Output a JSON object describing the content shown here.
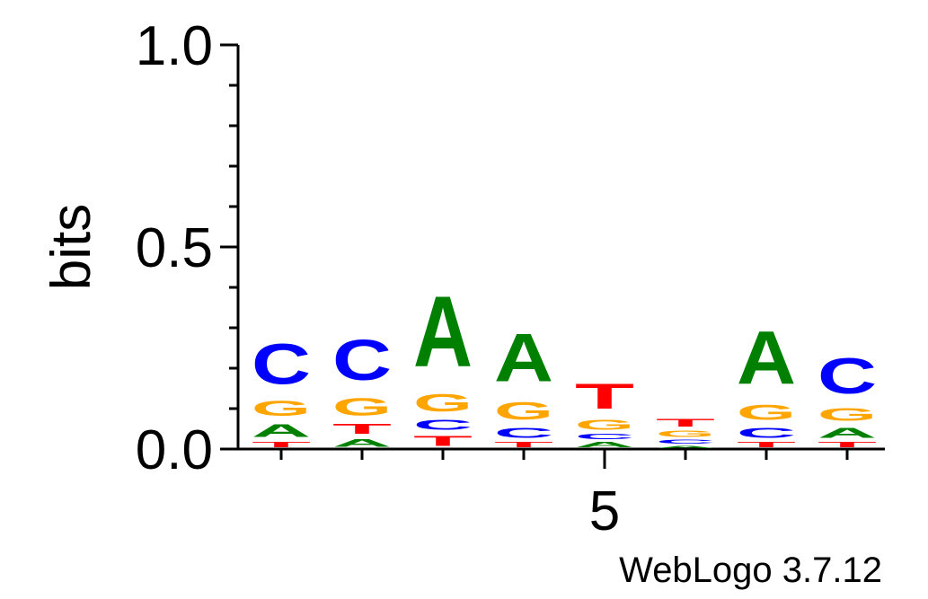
{
  "chart_data": {
    "type": "sequence-logo",
    "ylabel": "bits",
    "ylim": [
      0,
      1.0
    ],
    "y_ticks": [
      "0.0",
      "0.5",
      "1.0"
    ],
    "x_tick_labels": [
      {
        "position": 5,
        "label": "5"
      }
    ],
    "footer": "WebLogo 3.7.12",
    "colors": {
      "A": "#008000",
      "C": "#0000ff",
      "G": "#ffa500",
      "T": "#ff0000"
    },
    "positions": [
      {
        "pos": 1,
        "stack": [
          {
            "letter": "T",
            "bits": 0.02
          },
          {
            "letter": "A",
            "bits": 0.05
          },
          {
            "letter": "G",
            "bits": 0.06
          },
          {
            "letter": "C",
            "bits": 0.16
          }
        ]
      },
      {
        "pos": 2,
        "stack": [
          {
            "letter": "A",
            "bits": 0.03
          },
          {
            "letter": "T",
            "bits": 0.04
          },
          {
            "letter": "G",
            "bits": 0.07
          },
          {
            "letter": "C",
            "bits": 0.16
          }
        ]
      },
      {
        "pos": 3,
        "stack": [
          {
            "letter": "T",
            "bits": 0.04
          },
          {
            "letter": "C",
            "bits": 0.04
          },
          {
            "letter": "G",
            "bits": 0.07
          },
          {
            "letter": "A",
            "bits": 0.28
          }
        ]
      },
      {
        "pos": 4,
        "stack": [
          {
            "letter": "T",
            "bits": 0.02
          },
          {
            "letter": "C",
            "bits": 0.04
          },
          {
            "letter": "G",
            "bits": 0.07
          },
          {
            "letter": "A",
            "bits": 0.19
          }
        ]
      },
      {
        "pos": 5,
        "stack": [
          {
            "letter": "A",
            "bits": 0.02
          },
          {
            "letter": "C",
            "bits": 0.02
          },
          {
            "letter": "G",
            "bits": 0.04
          },
          {
            "letter": "T",
            "bits": 0.1
          }
        ]
      },
      {
        "pos": 6,
        "stack": [
          {
            "letter": "A",
            "bits": 0.01
          },
          {
            "letter": "C",
            "bits": 0.015
          },
          {
            "letter": "G",
            "bits": 0.025
          },
          {
            "letter": "T",
            "bits": 0.03
          }
        ]
      },
      {
        "pos": 7,
        "stack": [
          {
            "letter": "T",
            "bits": 0.02
          },
          {
            "letter": "C",
            "bits": 0.04
          },
          {
            "letter": "G",
            "bits": 0.06
          },
          {
            "letter": "A",
            "bits": 0.21
          }
        ]
      },
      {
        "pos": 8,
        "stack": [
          {
            "letter": "T",
            "bits": 0.02
          },
          {
            "letter": "A",
            "bits": 0.04
          },
          {
            "letter": "G",
            "bits": 0.05
          },
          {
            "letter": "C",
            "bits": 0.14
          }
        ]
      }
    ]
  }
}
